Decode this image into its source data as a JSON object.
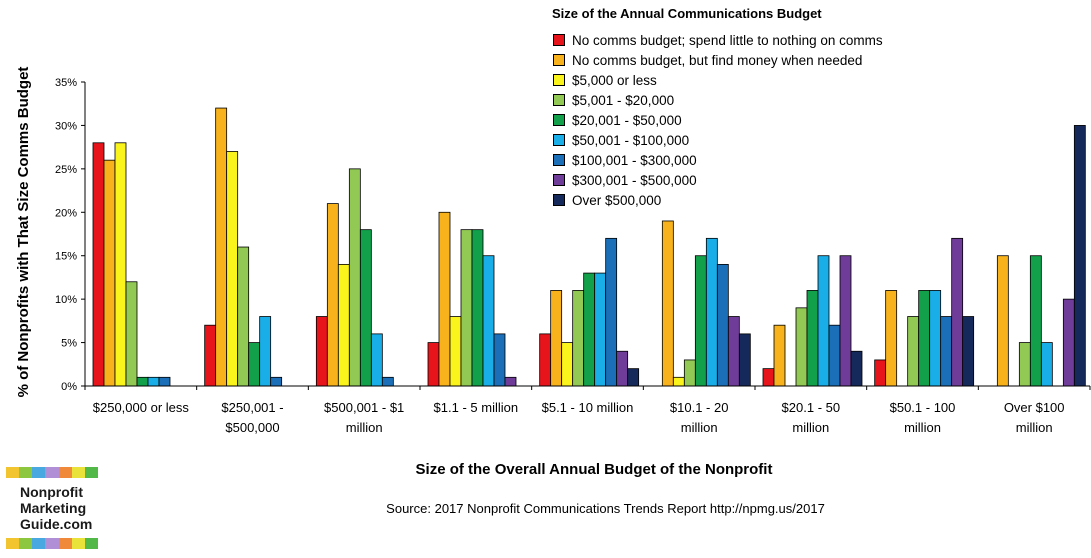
{
  "chart_data": {
    "type": "bar",
    "title": "",
    "xlabel": "Size of the Overall Annual Budget of the Nonprofit",
    "ylabel": "% of Nonprofits with That Size Comms Budget",
    "ylim": [
      0,
      35
    ],
    "yticks": [
      "0%",
      "5%",
      "10%",
      "15%",
      "20%",
      "25%",
      "30%",
      "35%"
    ],
    "grid": false,
    "legend_title": "Size of the Annual Communications Budget",
    "legend_position": "top-right",
    "categories": [
      [
        "$250,000 or less"
      ],
      [
        "$250,001 -",
        "$500,000"
      ],
      [
        "$500,001 - $1",
        "million"
      ],
      [
        "$1.1 - 5 million"
      ],
      [
        "$5.1 - 10 million"
      ],
      [
        "$10.1 - 20",
        "million"
      ],
      [
        "$20.1 - 50",
        "million"
      ],
      [
        "$50.1 - 100",
        "million"
      ],
      [
        "Over $100",
        "million"
      ]
    ],
    "series": [
      {
        "name": "No comms budget; spend little to nothing on comms",
        "color": "#e8141c",
        "values": [
          28,
          7,
          8,
          5,
          6,
          0,
          2,
          3,
          0
        ]
      },
      {
        "name": "No comms budget, but find money when needed",
        "color": "#f7b21c",
        "values": [
          26,
          32,
          21,
          20,
          11,
          19,
          7,
          11,
          15
        ]
      },
      {
        "name": "$5,000 or less",
        "color": "#fbf31c",
        "values": [
          28,
          27,
          14,
          8,
          5,
          1,
          0,
          0,
          0
        ]
      },
      {
        "name": "$5,001 - $20,000",
        "color": "#92c955",
        "values": [
          12,
          16,
          25,
          18,
          11,
          3,
          9,
          8,
          5
        ]
      },
      {
        "name": "$20,001 - $50,000",
        "color": "#12a04a",
        "values": [
          1,
          5,
          18,
          18,
          13,
          15,
          11,
          11,
          15
        ]
      },
      {
        "name": "$50,001 - $100,000",
        "color": "#1aaee8",
        "values": [
          1,
          8,
          6,
          15,
          13,
          17,
          15,
          11,
          5
        ]
      },
      {
        "name": "$100,001 - $300,000",
        "color": "#1b6fb8",
        "values": [
          1,
          1,
          1,
          6,
          17,
          14,
          7,
          8,
          0
        ]
      },
      {
        "name": "$300,001 - $500,000",
        "color": "#6f3d99",
        "values": [
          0,
          0,
          0,
          1,
          4,
          8,
          15,
          17,
          10
        ]
      },
      {
        "name": "Over $500,000",
        "color": "#152a5a",
        "values": [
          0,
          0,
          0,
          0,
          2,
          6,
          4,
          8,
          30
        ]
      }
    ]
  },
  "source_text": "Source: 2017 Nonprofit Communications Trends Report  http://npmg.us/2017",
  "logo": {
    "lines": [
      "Nonprofit",
      "Marketing",
      "Guide.com"
    ],
    "colors": [
      "#f2c530",
      "#8dc63f",
      "#4aa8e0",
      "#b08fd6",
      "#f08a3a",
      "#e8e23a",
      "#52b848"
    ]
  }
}
